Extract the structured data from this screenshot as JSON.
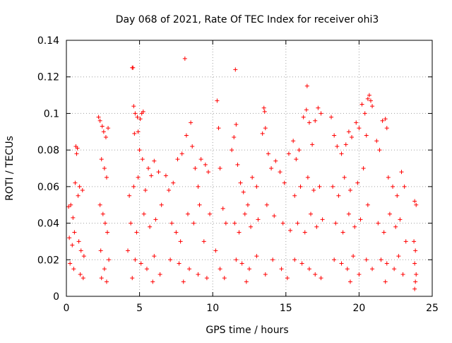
{
  "chart_data": {
    "type": "scatter",
    "title": "Day 068 of 2021, Rate Of TEC Index for receiver ohi3",
    "xlabel": "GPS time / hours",
    "ylabel": "ROTI / TECUs",
    "xlim": [
      0,
      25
    ],
    "ylim": [
      0,
      0.14
    ],
    "x_ticks": [
      0,
      5,
      10,
      15,
      20,
      25
    ],
    "x_tick_labels": [
      "0",
      "5",
      "10",
      "15",
      "20",
      "25"
    ],
    "y_ticks": [
      0,
      0.02,
      0.04,
      0.06,
      0.08,
      0.1,
      0.12,
      0.14
    ],
    "y_tick_labels": [
      "0",
      "0.02",
      "0.04",
      "0.06",
      "0.08",
      "0.1",
      "0.12",
      "0.14"
    ],
    "grid": true,
    "marker": "plus",
    "color": "#ff0000",
    "series": [
      {
        "points": [
          [
            0.15,
            0.049
          ],
          [
            0.3,
            0.05
          ],
          [
            0.45,
            0.043
          ],
          [
            0.6,
            0.062
          ],
          [
            0.65,
            0.082
          ],
          [
            0.7,
            0.078
          ],
          [
            0.75,
            0.081
          ],
          [
            0.8,
            0.055
          ],
          [
            0.9,
            0.06
          ],
          [
            1.1,
            0.058
          ],
          [
            0.2,
            0.032
          ],
          [
            0.4,
            0.028
          ],
          [
            0.55,
            0.035
          ],
          [
            0.85,
            0.03
          ],
          [
            1.0,
            0.025
          ],
          [
            1.2,
            0.022
          ],
          [
            0.25,
            0.018
          ],
          [
            0.5,
            0.015
          ],
          [
            0.95,
            0.012
          ],
          [
            1.15,
            0.01
          ],
          [
            2.2,
            0.098
          ],
          [
            2.3,
            0.096
          ],
          [
            2.45,
            0.093
          ],
          [
            2.55,
            0.09
          ],
          [
            2.7,
            0.087
          ],
          [
            2.85,
            0.092
          ],
          [
            2.4,
            0.075
          ],
          [
            2.6,
            0.07
          ],
          [
            2.75,
            0.065
          ],
          [
            2.3,
            0.05
          ],
          [
            2.5,
            0.045
          ],
          [
            2.65,
            0.04
          ],
          [
            2.8,
            0.035
          ],
          [
            2.35,
            0.025
          ],
          [
            2.9,
            0.02
          ],
          [
            2.6,
            0.015
          ],
          [
            2.4,
            0.01
          ],
          [
            2.75,
            0.008
          ],
          [
            4.5,
            0.125
          ],
          [
            4.55,
            0.125
          ],
          [
            4.6,
            0.104
          ],
          [
            4.7,
            0.1
          ],
          [
            4.85,
            0.098
          ],
          [
            5.05,
            0.097
          ],
          [
            5.15,
            0.1
          ],
          [
            5.25,
            0.101
          ],
          [
            4.65,
            0.089
          ],
          [
            4.9,
            0.09
          ],
          [
            5.0,
            0.08
          ],
          [
            5.2,
            0.075
          ],
          [
            4.3,
            0.055
          ],
          [
            4.6,
            0.06
          ],
          [
            4.9,
            0.065
          ],
          [
            5.4,
            0.058
          ],
          [
            5.6,
            0.07
          ],
          [
            5.8,
            0.066
          ],
          [
            6.0,
            0.074
          ],
          [
            6.3,
            0.068
          ],
          [
            4.4,
            0.04
          ],
          [
            4.8,
            0.035
          ],
          [
            5.3,
            0.045
          ],
          [
            5.7,
            0.038
          ],
          [
            6.1,
            0.042
          ],
          [
            6.5,
            0.05
          ],
          [
            4.2,
            0.025
          ],
          [
            4.7,
            0.02
          ],
          [
            5.1,
            0.018
          ],
          [
            5.5,
            0.015
          ],
          [
            6.0,
            0.022
          ],
          [
            6.4,
            0.012
          ],
          [
            4.5,
            0.01
          ],
          [
            5.9,
            0.008
          ],
          [
            6.8,
            0.066
          ],
          [
            7.0,
            0.058
          ],
          [
            7.3,
            0.062
          ],
          [
            7.6,
            0.075
          ],
          [
            7.9,
            0.078
          ],
          [
            8.1,
            0.13
          ],
          [
            8.2,
            0.088
          ],
          [
            8.5,
            0.095
          ],
          [
            8.6,
            0.082
          ],
          [
            8.8,
            0.07
          ],
          [
            9.0,
            0.06
          ],
          [
            9.2,
            0.075
          ],
          [
            9.5,
            0.072
          ],
          [
            9.7,
            0.068
          ],
          [
            7.2,
            0.04
          ],
          [
            7.5,
            0.035
          ],
          [
            7.8,
            0.03
          ],
          [
            8.3,
            0.045
          ],
          [
            8.7,
            0.04
          ],
          [
            9.1,
            0.05
          ],
          [
            9.4,
            0.03
          ],
          [
            9.8,
            0.045
          ],
          [
            7.1,
            0.02
          ],
          [
            7.7,
            0.018
          ],
          [
            8.4,
            0.015
          ],
          [
            9.0,
            0.012
          ],
          [
            9.6,
            0.01
          ],
          [
            8.0,
            0.008
          ],
          [
            10.3,
            0.107
          ],
          [
            10.4,
            0.092
          ],
          [
            10.5,
            0.07
          ],
          [
            10.7,
            0.048
          ],
          [
            10.9,
            0.04
          ],
          [
            10.2,
            0.025
          ],
          [
            10.5,
            0.015
          ],
          [
            10.8,
            0.01
          ],
          [
            11.3,
            0.08
          ],
          [
            11.45,
            0.087
          ],
          [
            11.55,
            0.124
          ],
          [
            11.6,
            0.094
          ],
          [
            11.7,
            0.072
          ],
          [
            11.9,
            0.062
          ],
          [
            12.1,
            0.057
          ],
          [
            12.4,
            0.05
          ],
          [
            12.7,
            0.065
          ],
          [
            13.0,
            0.06
          ],
          [
            13.4,
            0.089
          ],
          [
            13.5,
            0.103
          ],
          [
            13.55,
            0.101
          ],
          [
            13.6,
            0.092
          ],
          [
            13.8,
            0.078
          ],
          [
            14.0,
            0.07
          ],
          [
            14.3,
            0.074
          ],
          [
            14.6,
            0.068
          ],
          [
            14.9,
            0.062
          ],
          [
            15.2,
            0.078
          ],
          [
            11.5,
            0.04
          ],
          [
            11.8,
            0.035
          ],
          [
            12.2,
            0.045
          ],
          [
            12.6,
            0.038
          ],
          [
            13.1,
            0.042
          ],
          [
            13.7,
            0.05
          ],
          [
            14.2,
            0.044
          ],
          [
            14.8,
            0.04
          ],
          [
            15.3,
            0.036
          ],
          [
            11.6,
            0.02
          ],
          [
            12.0,
            0.018
          ],
          [
            12.5,
            0.015
          ],
          [
            13.0,
            0.022
          ],
          [
            13.6,
            0.012
          ],
          [
            14.1,
            0.02
          ],
          [
            14.7,
            0.015
          ],
          [
            15.1,
            0.01
          ],
          [
            12.3,
            0.008
          ],
          [
            15.5,
            0.085
          ],
          [
            15.7,
            0.075
          ],
          [
            15.9,
            0.08
          ],
          [
            16.2,
            0.098
          ],
          [
            16.4,
            0.102
          ],
          [
            16.45,
            0.115
          ],
          [
            16.6,
            0.095
          ],
          [
            16.8,
            0.083
          ],
          [
            17.0,
            0.096
          ],
          [
            17.2,
            0.103
          ],
          [
            17.4,
            0.1
          ],
          [
            15.6,
            0.055
          ],
          [
            16.0,
            0.06
          ],
          [
            16.5,
            0.065
          ],
          [
            16.9,
            0.058
          ],
          [
            17.3,
            0.06
          ],
          [
            15.8,
            0.04
          ],
          [
            16.3,
            0.035
          ],
          [
            16.7,
            0.045
          ],
          [
            17.1,
            0.038
          ],
          [
            17.5,
            0.042
          ],
          [
            15.6,
            0.02
          ],
          [
            16.1,
            0.018
          ],
          [
            16.6,
            0.015
          ],
          [
            17.0,
            0.012
          ],
          [
            17.4,
            0.01
          ],
          [
            18.1,
            0.098
          ],
          [
            18.3,
            0.088
          ],
          [
            18.5,
            0.082
          ],
          [
            18.8,
            0.078
          ],
          [
            19.1,
            0.083
          ],
          [
            19.3,
            0.09
          ],
          [
            19.5,
            0.087
          ],
          [
            19.8,
            0.095
          ],
          [
            20.0,
            0.092
          ],
          [
            20.2,
            0.105
          ],
          [
            20.4,
            0.1
          ],
          [
            20.6,
            0.108
          ],
          [
            20.7,
            0.11
          ],
          [
            20.8,
            0.107
          ],
          [
            20.9,
            0.104
          ],
          [
            20.5,
            0.088
          ],
          [
            18.2,
            0.06
          ],
          [
            18.6,
            0.055
          ],
          [
            19.0,
            0.065
          ],
          [
            19.4,
            0.058
          ],
          [
            19.9,
            0.062
          ],
          [
            20.3,
            0.07
          ],
          [
            18.4,
            0.04
          ],
          [
            18.9,
            0.035
          ],
          [
            19.3,
            0.045
          ],
          [
            19.7,
            0.038
          ],
          [
            20.1,
            0.042
          ],
          [
            20.6,
            0.05
          ],
          [
            18.3,
            0.02
          ],
          [
            18.8,
            0.018
          ],
          [
            19.2,
            0.015
          ],
          [
            19.6,
            0.022
          ],
          [
            20.0,
            0.012
          ],
          [
            20.5,
            0.02
          ],
          [
            20.9,
            0.015
          ],
          [
            19.4,
            0.008
          ],
          [
            21.2,
            0.085
          ],
          [
            21.4,
            0.08
          ],
          [
            21.6,
            0.096
          ],
          [
            21.8,
            0.097
          ],
          [
            21.9,
            0.092
          ],
          [
            22.0,
            0.065
          ],
          [
            22.3,
            0.06
          ],
          [
            22.6,
            0.055
          ],
          [
            22.9,
            0.068
          ],
          [
            23.1,
            0.06
          ],
          [
            21.3,
            0.04
          ],
          [
            21.7,
            0.035
          ],
          [
            22.1,
            0.045
          ],
          [
            22.5,
            0.038
          ],
          [
            22.8,
            0.042
          ],
          [
            23.2,
            0.03
          ],
          [
            21.5,
            0.02
          ],
          [
            21.9,
            0.018
          ],
          [
            22.4,
            0.015
          ],
          [
            22.7,
            0.022
          ],
          [
            23.0,
            0.012
          ],
          [
            21.8,
            0.008
          ],
          [
            23.8,
            0.052
          ],
          [
            23.9,
            0.05
          ],
          [
            23.75,
            0.03
          ],
          [
            23.85,
            0.025
          ],
          [
            23.8,
            0.018
          ],
          [
            23.9,
            0.012
          ],
          [
            23.85,
            0.008
          ],
          [
            23.8,
            0.004
          ]
        ]
      }
    ]
  }
}
